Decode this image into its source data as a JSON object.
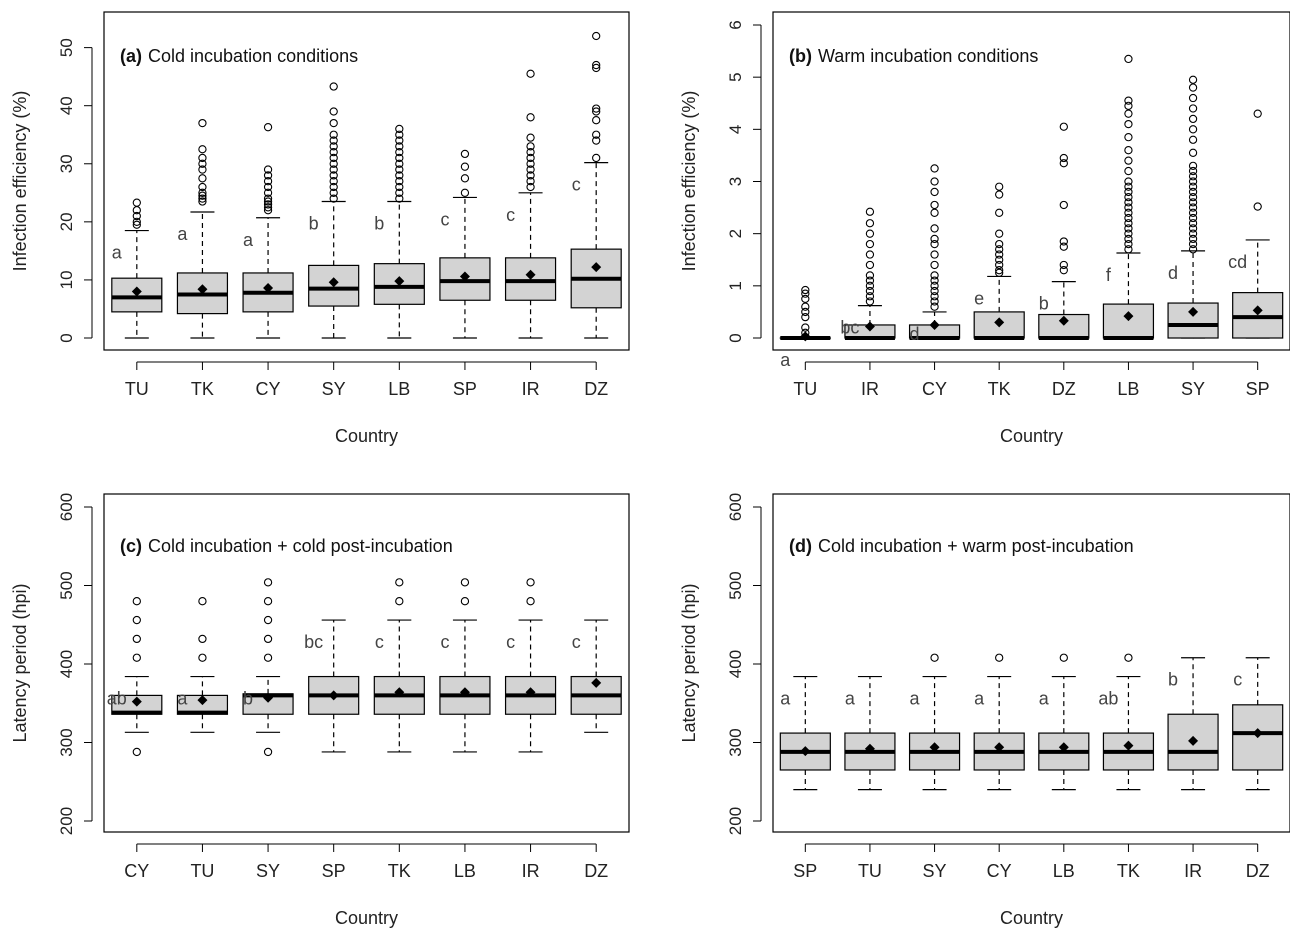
{
  "chart_data": [
    {
      "type": "box",
      "panel_label": "(a)",
      "title": "Cold incubation conditions",
      "xlabel": "Country",
      "ylabel": "Infection efficiency (%)",
      "ylim": [
        0,
        52
      ],
      "yticks": [
        0,
        10,
        20,
        30,
        40,
        50
      ],
      "categories": [
        "TU",
        "TK",
        "CY",
        "SY",
        "LB",
        "SP",
        "IR",
        "DZ"
      ],
      "boxes": [
        {
          "q1": 4.5,
          "median": 7.0,
          "q3": 10.3,
          "min": 0,
          "max": 18.5,
          "mean": 8.0,
          "outliers": [
            19.5,
            20,
            21,
            22,
            23.3
          ]
        },
        {
          "q1": 4.2,
          "median": 7.5,
          "q3": 11.2,
          "min": 0,
          "max": 21.7,
          "mean": 8.4,
          "outliers": [
            23.5,
            24,
            24.5,
            25,
            26,
            27.5,
            29,
            30,
            31,
            32.5,
            37
          ]
        },
        {
          "q1": 4.5,
          "median": 7.8,
          "q3": 11.2,
          "min": 0,
          "max": 20.7,
          "mean": 8.6,
          "outliers": [
            22,
            22.5,
            23,
            23.5,
            24,
            25,
            26,
            27,
            28,
            29,
            36.3
          ]
        },
        {
          "q1": 5.5,
          "median": 8.5,
          "q3": 12.5,
          "min": 0,
          "max": 23.5,
          "mean": 9.6,
          "outliers": [
            24,
            25,
            26,
            27,
            28,
            29,
            30,
            31,
            32,
            33,
            34,
            35,
            37,
            39,
            43.3
          ]
        },
        {
          "q1": 5.8,
          "median": 8.8,
          "q3": 12.8,
          "min": 0,
          "max": 23.5,
          "mean": 9.8,
          "outliers": [
            24,
            25,
            26,
            27,
            28,
            29,
            30,
            31,
            32,
            33,
            34,
            35,
            36
          ]
        },
        {
          "q1": 6.5,
          "median": 9.8,
          "q3": 13.8,
          "min": 0,
          "max": 24.2,
          "mean": 10.6,
          "outliers": [
            25,
            27.5,
            29.5,
            31.7
          ]
        },
        {
          "q1": 6.5,
          "median": 9.8,
          "q3": 13.8,
          "min": 0,
          "max": 25.0,
          "mean": 10.9,
          "outliers": [
            26,
            27,
            28,
            29,
            30,
            31,
            32,
            33,
            34.5,
            38,
            45.5
          ]
        },
        {
          "q1": 5.2,
          "median": 10.2,
          "q3": 15.3,
          "min": 0,
          "max": 30.2,
          "mean": 12.2,
          "outliers": [
            31,
            34,
            35,
            37.5,
            39,
            39.5,
            46.5,
            47,
            52
          ]
        }
      ],
      "letters": [
        "a",
        "a",
        "a",
        "b",
        "b",
        "c",
        "c",
        "c"
      ]
    },
    {
      "type": "box",
      "panel_label": "(b)",
      "title": "Warm incubation conditions",
      "xlabel": "Country",
      "ylabel": "Infection efficiency (%)",
      "ylim": [
        0,
        6
      ],
      "yticks": [
        0,
        1,
        2,
        3,
        4,
        5,
        6
      ],
      "categories": [
        "TU",
        "IR",
        "CY",
        "TK",
        "DZ",
        "LB",
        "SY",
        "SP"
      ],
      "boxes": [
        {
          "q1": 0,
          "median": 0,
          "q3": 0,
          "min": 0,
          "max": 0,
          "mean": 0.03,
          "outliers": [
            0.1,
            0.2,
            0.4,
            0.5,
            0.6,
            0.75,
            0.85,
            0.92
          ]
        },
        {
          "q1": 0,
          "median": 0,
          "q3": 0.25,
          "min": 0,
          "max": 0.62,
          "mean": 0.22,
          "outliers": [
            0.7,
            0.8,
            0.9,
            1.0,
            1.1,
            1.2,
            1.4,
            1.6,
            1.8,
            2.0,
            2.2,
            2.42
          ]
        },
        {
          "q1": 0,
          "median": 0,
          "q3": 0.25,
          "min": 0,
          "max": 0.5,
          "mean": 0.25,
          "outliers": [
            0.6,
            0.7,
            0.8,
            0.9,
            1.0,
            1.1,
            1.2,
            1.4,
            1.6,
            1.8,
            1.9,
            2.1,
            2.4,
            2.55,
            2.8,
            3.0,
            3.25
          ]
        },
        {
          "q1": 0,
          "median": 0,
          "q3": 0.5,
          "min": 0,
          "max": 1.18,
          "mean": 0.3,
          "outliers": [
            1.25,
            1.3,
            1.4,
            1.5,
            1.6,
            1.7,
            1.8,
            2.0,
            2.4,
            2.75,
            2.9
          ]
        },
        {
          "q1": 0,
          "median": 0,
          "q3": 0.45,
          "min": 0,
          "max": 1.08,
          "mean": 0.33,
          "outliers": [
            1.3,
            1.4,
            1.75,
            1.85,
            2.55,
            3.35,
            3.45,
            4.05
          ]
        },
        {
          "q1": 0,
          "median": 0,
          "q3": 0.65,
          "min": 0,
          "max": 1.63,
          "mean": 0.42,
          "outliers": [
            1.7,
            1.8,
            1.9,
            2.0,
            2.1,
            2.2,
            2.3,
            2.4,
            2.5,
            2.6,
            2.7,
            2.8,
            2.9,
            3.0,
            3.2,
            3.4,
            3.6,
            3.85,
            4.1,
            4.3,
            4.45,
            4.55,
            5.35
          ]
        },
        {
          "q1": 0,
          "median": 0.25,
          "q3": 0.67,
          "min": 0,
          "max": 1.67,
          "mean": 0.5,
          "outliers": [
            1.7,
            1.8,
            1.9,
            2.0,
            2.1,
            2.2,
            2.3,
            2.4,
            2.5,
            2.6,
            2.7,
            2.8,
            2.9,
            3.0,
            3.1,
            3.2,
            3.3,
            3.55,
            3.8,
            4.0,
            4.2,
            4.4,
            4.6,
            4.8,
            4.95
          ]
        },
        {
          "q1": 0,
          "median": 0.4,
          "q3": 0.87,
          "min": 0,
          "max": 1.88,
          "mean": 0.53,
          "outliers": [
            2.52,
            4.3
          ]
        }
      ],
      "letters": [
        "a",
        "bc",
        "d",
        "e",
        "b",
        "f",
        "d",
        "cd"
      ]
    },
    {
      "type": "box",
      "panel_label": "(c)",
      "title": "Cold incubation + cold post-incubation",
      "xlabel": "Country",
      "ylabel": "Latency period (hpi)",
      "ylim": [
        200,
        600
      ],
      "yticks": [
        200,
        300,
        400,
        500,
        600
      ],
      "categories": [
        "CY",
        "TU",
        "SY",
        "SP",
        "TK",
        "LB",
        "IR",
        "DZ"
      ],
      "boxes": [
        {
          "q1": 336,
          "median": 338,
          "q3": 360,
          "min": 313,
          "max": 384,
          "mean": 352,
          "outliers": [
            288,
            408,
            432,
            456,
            480
          ]
        },
        {
          "q1": 336,
          "median": 338,
          "q3": 360,
          "min": 313,
          "max": 384,
          "mean": 354,
          "outliers": [
            408,
            432,
            480
          ]
        },
        {
          "q1": 336,
          "median": 360,
          "q3": 362,
          "min": 313,
          "max": 384,
          "mean": 357,
          "outliers": [
            288,
            408,
            432,
            456,
            480,
            504
          ]
        },
        {
          "q1": 336,
          "median": 360,
          "q3": 384,
          "min": 288,
          "max": 456,
          "mean": 360,
          "outliers": []
        },
        {
          "q1": 336,
          "median": 360,
          "q3": 384,
          "min": 288,
          "max": 456,
          "mean": 364,
          "outliers": [
            480,
            504
          ]
        },
        {
          "q1": 336,
          "median": 360,
          "q3": 384,
          "min": 288,
          "max": 456,
          "mean": 364,
          "outliers": [
            480,
            504
          ]
        },
        {
          "q1": 336,
          "median": 360,
          "q3": 384,
          "min": 288,
          "max": 456,
          "mean": 364,
          "outliers": [
            480,
            504
          ]
        },
        {
          "q1": 336,
          "median": 360,
          "q3": 384,
          "min": 313,
          "max": 456,
          "mean": 376,
          "outliers": []
        }
      ],
      "letters": [
        "ab",
        "a",
        "b",
        "bc",
        "c",
        "c",
        "c",
        "c"
      ]
    },
    {
      "type": "box",
      "panel_label": "(d)",
      "title": "Cold incubation + warm post-incubation",
      "xlabel": "Country",
      "ylabel": "Latency period (hpi)",
      "ylim": [
        200,
        600
      ],
      "yticks": [
        200,
        300,
        400,
        500,
        600
      ],
      "categories": [
        "SP",
        "TU",
        "SY",
        "CY",
        "LB",
        "TK",
        "IR",
        "DZ"
      ],
      "boxes": [
        {
          "q1": 265,
          "median": 288,
          "q3": 312,
          "min": 240,
          "max": 384,
          "mean": 289,
          "outliers": []
        },
        {
          "q1": 265,
          "median": 288,
          "q3": 312,
          "min": 240,
          "max": 384,
          "mean": 292,
          "outliers": []
        },
        {
          "q1": 265,
          "median": 288,
          "q3": 312,
          "min": 240,
          "max": 384,
          "mean": 294,
          "outliers": [
            408
          ]
        },
        {
          "q1": 265,
          "median": 288,
          "q3": 312,
          "min": 240,
          "max": 384,
          "mean": 294,
          "outliers": [
            408
          ]
        },
        {
          "q1": 265,
          "median": 288,
          "q3": 312,
          "min": 240,
          "max": 384,
          "mean": 294,
          "outliers": [
            408
          ]
        },
        {
          "q1": 265,
          "median": 288,
          "q3": 312,
          "min": 240,
          "max": 384,
          "mean": 296,
          "outliers": [
            408
          ]
        },
        {
          "q1": 265,
          "median": 288,
          "q3": 336,
          "min": 240,
          "max": 408,
          "mean": 302,
          "outliers": []
        },
        {
          "q1": 265,
          "median": 312,
          "q3": 348,
          "min": 240,
          "max": 408,
          "mean": 312,
          "outliers": []
        }
      ],
      "letters": [
        "a",
        "a",
        "a",
        "a",
        "a",
        "ab",
        "b",
        "c"
      ]
    }
  ]
}
